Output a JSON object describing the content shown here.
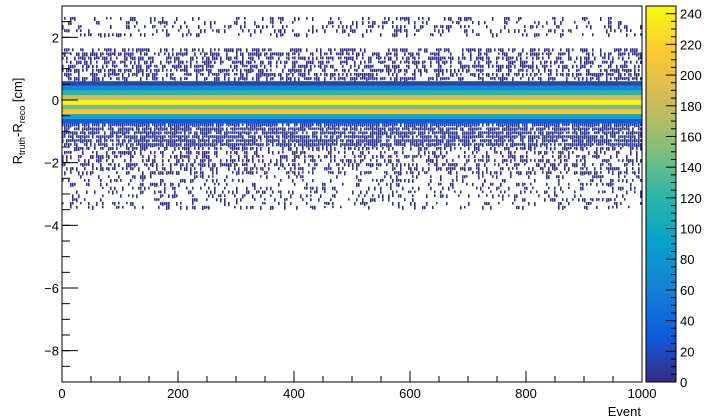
{
  "chart_data": {
    "type": "heatmap",
    "title": "",
    "xlabel": "Event",
    "ylabel_main": "R",
    "ylabel_sub1": "truth",
    "ylabel_mid": "-R",
    "ylabel_sub2": "reco",
    "ylabel_unit": " [cm]",
    "xlim": [
      0,
      1000
    ],
    "ylim": [
      -9,
      3
    ],
    "zlim": [
      0,
      245
    ],
    "x_ticks": [
      0,
      200,
      400,
      600,
      800,
      1000
    ],
    "x_tick_labels": [
      "0",
      "200",
      "400",
      "600",
      "800",
      "1000"
    ],
    "y_ticks": [
      -8,
      -6,
      -4,
      -2,
      0,
      2
    ],
    "y_tick_labels": [
      "−8",
      "−6",
      "−4",
      "−2",
      "0",
      "2"
    ],
    "z_ticks": [
      0,
      20,
      40,
      60,
      80,
      100,
      120,
      140,
      160,
      180,
      200,
      220,
      240
    ],
    "z_tick_labels": [
      "0",
      "20",
      "40",
      "60",
      "80",
      "100",
      "120",
      "140",
      "160",
      "180",
      "200",
      "220",
      "240"
    ],
    "colormap": "kBird",
    "colormap_stops": [
      "#352a87",
      "#0f5cdd",
      "#1481d6",
      "#06a4ca",
      "#2eb7a4",
      "#87bf77",
      "#d1bb59",
      "#fec832",
      "#f9fb0e"
    ],
    "bands": [
      {
        "y_low": -0.45,
        "y_high": -0.3,
        "count": 210
      },
      {
        "y_low": -0.3,
        "y_high": -0.15,
        "count": 150
      },
      {
        "y_low": -0.15,
        "y_high": 0.0,
        "count": 240
      },
      {
        "y_low": 0.0,
        "y_high": 0.15,
        "count": 185
      },
      {
        "y_low": 0.15,
        "y_high": 0.3,
        "count": 120
      },
      {
        "y_low": -0.6,
        "y_high": -0.45,
        "count": 95
      },
      {
        "y_low": 0.3,
        "y_high": 0.45,
        "count": 70
      },
      {
        "y_low": -0.75,
        "y_high": -0.6,
        "count": 30
      },
      {
        "y_low": 0.45,
        "y_high": 0.6,
        "count": 18
      },
      {
        "y_low": -1.5,
        "y_high": -0.75,
        "count": 8
      },
      {
        "y_low": 0.6,
        "y_high": 1.65,
        "count": 4
      },
      {
        "y_low": -2.4,
        "y_high": -1.5,
        "count": 3
      },
      {
        "y_low": -3.5,
        "y_high": -2.4,
        "count": 1
      },
      {
        "y_low": 2.0,
        "y_high": 2.65,
        "count": 1
      }
    ]
  }
}
